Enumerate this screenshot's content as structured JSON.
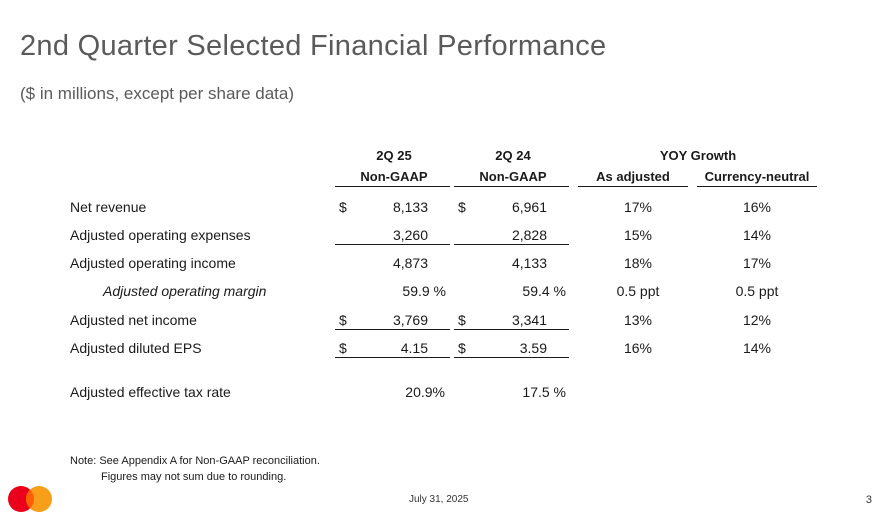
{
  "title": "2nd Quarter Selected Financial Performance",
  "subtitle": "($ in millions, except per share data)",
  "headers": {
    "col1_line1": "2Q 25",
    "col1_line2": "Non-GAAP",
    "col2_line1": "2Q 24",
    "col2_line2": "Non-GAAP",
    "growth_group": "YOY Growth",
    "growth_adjusted": "As adjusted",
    "growth_currency": "Currency-neutral"
  },
  "rows": [
    {
      "label": "Net revenue",
      "dollar1": "$",
      "q25": "8,133",
      "dollar2": "$",
      "q24": "6,961",
      "as_adjusted": "17%",
      "currency_neutral": "16%"
    },
    {
      "label": "Adjusted operating expenses",
      "dollar1": "",
      "q25": "3,260",
      "dollar2": "",
      "q24": "2,828",
      "as_adjusted": "15%",
      "currency_neutral": "14%"
    },
    {
      "label": "Adjusted operating income",
      "dollar1": "",
      "q25": "4,873",
      "dollar2": "",
      "q24": "4,133",
      "as_adjusted": "18%",
      "currency_neutral": "17%"
    },
    {
      "label": "Adjusted operating margin",
      "dollar1": "",
      "q25": "59.9 %",
      "dollar2": "",
      "q24": "59.4 %",
      "as_adjusted": "0.5 ppt",
      "currency_neutral": "0.5 ppt"
    },
    {
      "label": "Adjusted net income",
      "dollar1": "$",
      "q25": "3,769",
      "dollar2": "$",
      "q24": "3,341",
      "as_adjusted": "13%",
      "currency_neutral": "12%"
    },
    {
      "label": "Adjusted diluted EPS",
      "dollar1": "$",
      "q25": "4.15",
      "dollar2": "$",
      "q24": "3.59",
      "as_adjusted": "16%",
      "currency_neutral": "14%"
    },
    {
      "label": "Adjusted effective tax rate",
      "dollar1": "",
      "q25": "20.9%",
      "dollar2": "",
      "q24": "17.5 %",
      "as_adjusted": "",
      "currency_neutral": ""
    }
  ],
  "note": {
    "line1": "Note: See Appendix A for Non-GAAP reconciliation.",
    "line2": "Figures may not sum due to rounding."
  },
  "footer": {
    "date": "July 31, 2025",
    "page_number": "3",
    "logo_icon": "mastercard-logo-icon",
    "logo_colors": {
      "red": "#EB001B",
      "orange": "#F79E1B",
      "overlap": "#FF5F00"
    }
  }
}
